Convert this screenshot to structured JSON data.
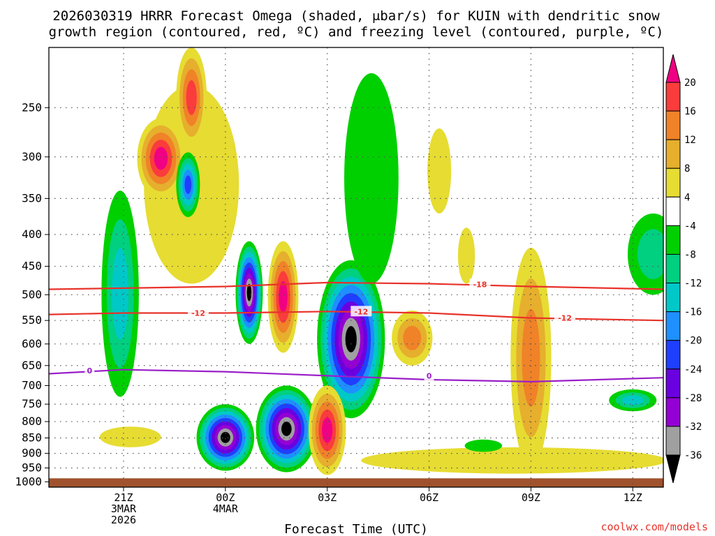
{
  "page": {
    "title_line1": "2026030319 HRRR Forecast Omega (shaded, μbar/s) for KUIN with dendritic snow",
    "title_line2": "growth region (contoured, red, ºC) and freezing level (contoured, purple, ºC)",
    "credit": "coolwx.com/models"
  },
  "chart_data": {
    "type": "heatmap",
    "title": "2026030319 HRRR Forecast Omega (shaded, μbar/s) for KUIN with dendritic snow growth region (contoured, red, ºC) and freezing level (contoured, purple, ºC)",
    "xlabel": "Forecast Time (UTC)",
    "ylabel": "",
    "xlim_hours": [
      -2.2,
      15.9
    ],
    "ylim_hpa": [
      1020,
      200
    ],
    "y_scale": "log",
    "y_ticks": [
      250,
      300,
      350,
      400,
      450,
      500,
      550,
      600,
      650,
      700,
      750,
      800,
      850,
      900,
      950,
      1000
    ],
    "x_ticks": [
      {
        "hour": 0,
        "lines": [
          "21Z",
          "3MAR",
          "2026"
        ]
      },
      {
        "hour": 3,
        "lines": [
          "00Z",
          "4MAR"
        ]
      },
      {
        "hour": 6,
        "lines": [
          "03Z"
        ]
      },
      {
        "hour": 9,
        "lines": [
          "06Z"
        ]
      },
      {
        "hour": 12,
        "lines": [
          "09Z"
        ]
      },
      {
        "hour": 15,
        "lines": [
          "12Z"
        ]
      }
    ],
    "grid": true,
    "surface_color": "#a0522d",
    "colorbar": {
      "levels": [
        -36,
        -32,
        -28,
        -24,
        -20,
        -16,
        -12,
        -8,
        -4,
        4,
        8,
        12,
        16,
        20
      ],
      "bins": [
        {
          "range": [
            -99,
            -36
          ],
          "color": "#000000"
        },
        {
          "range": [
            -36,
            -32
          ],
          "color": "#a0a0a0"
        },
        {
          "range": [
            -32,
            -28
          ],
          "color": "#9400d3"
        },
        {
          "range": [
            -28,
            -24
          ],
          "color": "#6a00e0"
        },
        {
          "range": [
            -24,
            -20
          ],
          "color": "#1f3fff"
        },
        {
          "range": [
            -20,
            -16
          ],
          "color": "#1e90ff"
        },
        {
          "range": [
            -16,
            -12
          ],
          "color": "#00c8c8"
        },
        {
          "range": [
            -12,
            -8
          ],
          "color": "#00d080"
        },
        {
          "range": [
            -8,
            -4
          ],
          "color": "#00d000"
        },
        {
          "range": [
            -4,
            4
          ],
          "color": "#ffffff"
        },
        {
          "range": [
            4,
            8
          ],
          "color": "#e6dc32"
        },
        {
          "range": [
            8,
            12
          ],
          "color": "#e6af2d"
        },
        {
          "range": [
            12,
            16
          ],
          "color": "#f08228"
        },
        {
          "range": [
            16,
            20
          ],
          "color": "#fa3c3c"
        },
        {
          "range": [
            20,
            99
          ],
          "color": "#f00082"
        }
      ]
    },
    "omega_regions": [
      {
        "id": "n-left-column",
        "center": [
          -0.1,
          620
        ],
        "rx_h": 0.55,
        "p_range": [
          340,
          730
        ],
        "levels": [
          -4,
          -8,
          -12
        ]
      },
      {
        "id": "p-left-low",
        "center": [
          0.2,
          845
        ],
        "rx_h": 0.9,
        "p_range": [
          815,
          880
        ],
        "levels": [
          4
        ]
      },
      {
        "id": "p-upper-arc",
        "center": [
          2.0,
          330
        ],
        "rx_h": 1.4,
        "p_range": [
          230,
          480
        ],
        "levels": [
          4
        ]
      },
      {
        "id": "p-core-upper",
        "center": [
          1.1,
          300
        ],
        "rx_h": 0.7,
        "p_range": [
          260,
          350
        ],
        "levels": [
          4,
          8,
          12,
          16,
          20
        ]
      },
      {
        "id": "p-core-top",
        "center": [
          2.0,
          225
        ],
        "rx_h": 0.45,
        "p_range": [
          200,
          290
        ],
        "levels": [
          4,
          8,
          12,
          16
        ]
      },
      {
        "id": "n-small-upper",
        "center": [
          1.9,
          330
        ],
        "rx_h": 0.35,
        "p_range": [
          295,
          375
        ],
        "levels": [
          -4,
          -8,
          -12,
          -16,
          -20
        ]
      },
      {
        "id": "n-mid-left",
        "center": [
          3.7,
          500
        ],
        "rx_h": 0.4,
        "p_range": [
          410,
          600
        ],
        "levels": [
          -4,
          -8,
          -12,
          -16,
          -20,
          -24,
          -28,
          -32,
          -36
        ]
      },
      {
        "id": "p-mid-pink",
        "center": [
          4.7,
          500
        ],
        "rx_h": 0.45,
        "p_range": [
          410,
          620
        ],
        "levels": [
          4,
          8,
          12,
          16,
          20
        ]
      },
      {
        "id": "n-big-middle",
        "center": [
          6.7,
          600
        ],
        "rx_h": 1.0,
        "p_range": [
          440,
          790
        ],
        "levels": [
          -4,
          -8,
          -12,
          -16,
          -20,
          -24,
          -28,
          -32,
          -36
        ]
      },
      {
        "id": "n-top-band",
        "center": [
          7.3,
          340
        ],
        "rx_h": 0.8,
        "p_range": [
          220,
          480
        ],
        "levels": [
          -4
        ]
      },
      {
        "id": "n-lower-left",
        "center": [
          3.0,
          840
        ],
        "rx_h": 0.85,
        "p_range": [
          750,
          960
        ],
        "levels": [
          -4,
          -8,
          -12,
          -16,
          -20,
          -24,
          -28,
          -32,
          -36
        ]
      },
      {
        "id": "n-lower-mid",
        "center": [
          4.8,
          820
        ],
        "rx_h": 0.9,
        "p_range": [
          700,
          965
        ],
        "levels": [
          -4,
          -8,
          -12,
          -16,
          -20,
          -24,
          -28,
          -32,
          -36
        ]
      },
      {
        "id": "p-lower-pink",
        "center": [
          6.0,
          830
        ],
        "rx_h": 0.55,
        "p_range": [
          700,
          975
        ],
        "levels": [
          4,
          8,
          12,
          16,
          20
        ]
      },
      {
        "id": "p-right-of-black",
        "center": [
          8.5,
          590
        ],
        "rx_h": 0.6,
        "p_range": [
          530,
          650
        ],
        "levels": [
          4,
          8,
          12
        ]
      },
      {
        "id": "p-upper-right-drop",
        "center": [
          9.3,
          320
        ],
        "rx_h": 0.35,
        "p_range": [
          270,
          370
        ],
        "levels": [
          4
        ]
      },
      {
        "id": "p-mid-right-drop",
        "center": [
          10.1,
          430
        ],
        "rx_h": 0.25,
        "p_range": [
          390,
          480
        ],
        "levels": [
          4
        ]
      },
      {
        "id": "p-right-column",
        "center": [
          12.0,
          650
        ],
        "rx_h": 0.6,
        "p_range": [
          420,
          950
        ],
        "levels": [
          4,
          8,
          12
        ]
      },
      {
        "id": "n-far-right",
        "center": [
          15.6,
          430
        ],
        "rx_h": 0.75,
        "p_range": [
          370,
          500
        ],
        "levels": [
          -4,
          -8
        ]
      },
      {
        "id": "n-small-right",
        "center": [
          15.0,
          740
        ],
        "rx_h": 0.7,
        "p_range": [
          710,
          770
        ],
        "levels": [
          -4,
          -8,
          -12
        ]
      },
      {
        "id": "p-bottom-band",
        "center": [
          11.5,
          920
        ],
        "rx_h": 4.5,
        "p_range": [
          880,
          970
        ],
        "levels": [
          4
        ]
      },
      {
        "id": "n-small-low",
        "center": [
          10.6,
          875
        ],
        "rx_h": 0.55,
        "p_range": [
          855,
          895
        ],
        "levels": [
          -4
        ]
      }
    ],
    "series": [
      {
        "name": "-18 C isotherm",
        "color": "#e8322a",
        "label": "-18",
        "x_hours": [
          -2.2,
          0,
          3,
          6,
          9,
          12,
          15.9
        ],
        "pressure_hpa": [
          490,
          488,
          485,
          478,
          480,
          485,
          490
        ]
      },
      {
        "name": "-12 C isotherm",
        "color": "#e8322a",
        "label": "-12",
        "x_hours": [
          -2.2,
          0,
          3,
          6,
          9,
          12,
          15.9
        ],
        "pressure_hpa": [
          538,
          535,
          535,
          532,
          535,
          545,
          550
        ]
      },
      {
        "name": "0 C freezing level",
        "color": "#9b1fc8",
        "label": "0",
        "x_hours": [
          -2.2,
          0,
          3,
          6,
          9,
          12,
          15.9
        ],
        "pressure_hpa": [
          670,
          660,
          665,
          675,
          685,
          690,
          680
        ]
      }
    ],
    "contour_labels": [
      {
        "text": "-18",
        "hour": 10.5,
        "pressure_hpa": 481,
        "color": "#e8322a"
      },
      {
        "text": "-12",
        "hour": 2.2,
        "pressure_hpa": 535,
        "color": "#e8322a"
      },
      {
        "text": "-12",
        "hour": 7.0,
        "pressure_hpa": 532,
        "color": "#e8322a"
      },
      {
        "text": "-12",
        "hour": 13.0,
        "pressure_hpa": 545,
        "color": "#e8322a"
      },
      {
        "text": "0",
        "hour": -1.0,
        "pressure_hpa": 662,
        "color": "#9b1fc8"
      },
      {
        "text": "0",
        "hour": 9.0,
        "pressure_hpa": 675,
        "color": "#9b1fc8"
      }
    ]
  }
}
